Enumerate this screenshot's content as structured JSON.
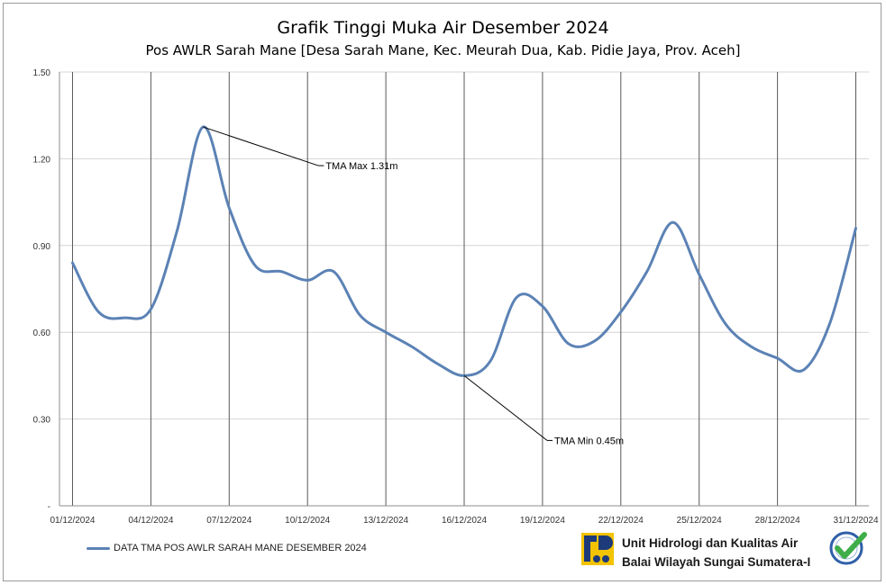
{
  "chart_data": {
    "type": "line",
    "title": "Grafik Tinggi Muka Air Desember 2024",
    "subtitle": "Pos AWLR Sarah Mane [Desa Sarah Mane, Kec. Meurah Dua, Kab. Pidie Jaya, Prov. Aceh]",
    "x": [
      "01/12/2024",
      "02/12/2024",
      "03/12/2024",
      "04/12/2024",
      "05/12/2024",
      "06/12/2024",
      "07/12/2024",
      "08/12/2024",
      "09/12/2024",
      "10/12/2024",
      "11/12/2024",
      "12/12/2024",
      "13/12/2024",
      "14/12/2024",
      "15/12/2024",
      "16/12/2024",
      "17/12/2024",
      "18/12/2024",
      "19/12/2024",
      "20/12/2024",
      "21/12/2024",
      "22/12/2024",
      "23/12/2024",
      "24/12/2024",
      "25/12/2024",
      "26/12/2024",
      "27/12/2024",
      "28/12/2024",
      "29/12/2024",
      "30/12/2024",
      "31/12/2024"
    ],
    "x_tick_labels": [
      "01/12/2024",
      "04/12/2024",
      "07/12/2024",
      "10/12/2024",
      "13/12/2024",
      "16/12/2024",
      "19/12/2024",
      "22/12/2024",
      "25/12/2024",
      "28/12/2024",
      "31/12/2024"
    ],
    "series": [
      {
        "name": "DATA TMA POS AWLR SARAH MANE DESEMBER 2024",
        "color": "#5b82b5",
        "values": [
          0.84,
          0.67,
          0.65,
          0.68,
          0.95,
          1.31,
          1.03,
          0.83,
          0.81,
          0.78,
          0.81,
          0.66,
          0.6,
          0.55,
          0.49,
          0.45,
          0.5,
          0.72,
          0.69,
          0.56,
          0.57,
          0.67,
          0.81,
          0.98,
          0.8,
          0.63,
          0.55,
          0.51,
          0.47,
          0.63,
          0.96
        ]
      }
    ],
    "ylim": [
      0,
      1.5
    ],
    "y_tick_labels": [
      "-",
      "0.30",
      "0.60",
      "0.90",
      "1.20",
      "1.50"
    ],
    "y_tick_values": [
      0,
      0.3,
      0.6,
      0.9,
      1.2,
      1.5
    ],
    "grid": true,
    "annotations": [
      {
        "text": "TMA Max 1.31m",
        "x_index": 5,
        "value": 1.31
      },
      {
        "text": "TMA Min 0.45m",
        "x_index": 15,
        "value": 0.45
      }
    ],
    "legend_position": "bottom-left"
  },
  "footer": {
    "org_line1": "Unit Hidrologi dan Kualitas Air",
    "org_line2": "Balai Wilayah Sungai Sumatera-I"
  }
}
